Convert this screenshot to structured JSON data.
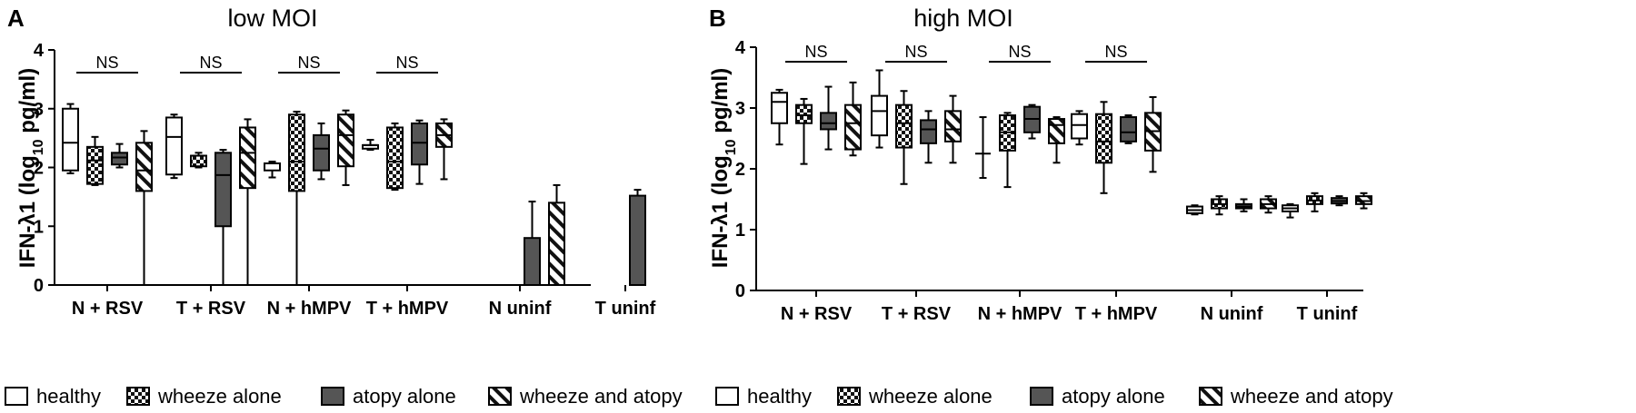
{
  "chart_data": [
    {
      "type": "box",
      "panel": "A",
      "title": "low MOI",
      "ylabel": "IFN-λ1 (log10 pg/ml)",
      "ylim": [
        0,
        4
      ],
      "yticks": [
        "0",
        "1",
        "2",
        "3",
        "4"
      ],
      "categories": [
        "N + RSV",
        "T + RSV",
        "N + hMPV",
        "T + hMPV",
        "N uninf",
        "T uninf"
      ],
      "annotations": [
        {
          "category": "N + RSV",
          "text": "NS"
        },
        {
          "category": "T + RSV",
          "text": "NS"
        },
        {
          "category": "N + hMPV",
          "text": "NS"
        },
        {
          "category": "T + hMPV",
          "text": "NS"
        }
      ],
      "series": [
        {
          "name": "healthy",
          "fill": "white",
          "values": [
            {
              "min": 1.9,
              "q1": 1.95,
              "median": 2.42,
              "q3": 3.0,
              "max": 3.08
            },
            {
              "min": 1.82,
              "q1": 1.88,
              "median": 2.52,
              "q3": 2.85,
              "max": 2.9
            },
            {
              "min": 1.83,
              "q1": 1.95,
              "median": 2.07,
              "q3": 2.07,
              "max": 2.1
            },
            {
              "min": 2.3,
              "q1": 2.32,
              "median": 2.38,
              "q3": 2.38,
              "max": 2.47
            },
            null,
            null
          ]
        },
        {
          "name": "wheeze alone",
          "fill": "checker",
          "values": [
            {
              "min": 1.7,
              "q1": 1.72,
              "median": 2.12,
              "q3": 2.35,
              "max": 2.52
            },
            {
              "min": 2.0,
              "q1": 2.02,
              "median": 2.2,
              "q3": 2.2,
              "max": 2.25
            },
            {
              "min": 0.0,
              "q1": 1.6,
              "median": 2.1,
              "q3": 2.9,
              "max": 2.95
            },
            {
              "min": 1.62,
              "q1": 1.65,
              "median": 2.1,
              "q3": 2.68,
              "max": 2.75
            },
            null,
            null
          ]
        },
        {
          "name": "atopy alone",
          "fill": "dark",
          "values": [
            {
              "min": 2.0,
              "q1": 2.05,
              "median": 2.17,
              "q3": 2.25,
              "max": 2.4
            },
            {
              "min": 0.0,
              "q1": 1.0,
              "median": 1.87,
              "q3": 2.25,
              "max": 2.3
            },
            {
              "min": 1.8,
              "q1": 1.95,
              "median": 2.32,
              "q3": 2.55,
              "max": 2.75
            },
            {
              "min": 1.72,
              "q1": 2.05,
              "median": 2.42,
              "q3": 2.75,
              "max": 2.8
            },
            {
              "min": 0.0,
              "q1": 0.0,
              "median": 0.0,
              "q3": 0.8,
              "max": 1.42
            },
            {
              "min": 0.0,
              "q1": 0.0,
              "median": 0.0,
              "q3": 1.52,
              "max": 1.62
            }
          ]
        },
        {
          "name": "wheeze and atopy",
          "fill": "hatch",
          "values": [
            {
              "min": 0.0,
              "q1": 1.6,
              "median": 1.95,
              "q3": 2.42,
              "max": 2.62
            },
            {
              "min": 0.0,
              "q1": 1.65,
              "median": 2.25,
              "q3": 2.68,
              "max": 2.82
            },
            {
              "min": 1.7,
              "q1": 2.02,
              "median": 2.55,
              "q3": 2.9,
              "max": 2.97
            },
            {
              "min": 1.8,
              "q1": 2.35,
              "median": 2.55,
              "q3": 2.75,
              "max": 2.82
            },
            {
              "min": 0.0,
              "q1": 0.0,
              "median": 0.0,
              "q3": 1.4,
              "max": 1.7
            },
            null
          ]
        }
      ]
    },
    {
      "type": "box",
      "panel": "B",
      "title": "high MOI",
      "ylabel": "IFN-λ1 (log10 pg/ml)",
      "ylim": [
        0,
        4
      ],
      "yticks": [
        "0",
        "1",
        "2",
        "3",
        "4"
      ],
      "categories": [
        "N + RSV",
        "T + RSV",
        "N + hMPV",
        "T + hMPV",
        "N uninf",
        "T uninf"
      ],
      "annotations": [
        {
          "category": "N + RSV",
          "text": "NS"
        },
        {
          "category": "T + RSV",
          "text": "NS"
        },
        {
          "category": "N + hMPV",
          "text": "NS"
        },
        {
          "category": "T + hMPV",
          "text": "NS"
        }
      ],
      "series": [
        {
          "name": "healthy",
          "fill": "white",
          "values": [
            {
              "min": 2.4,
              "q1": 2.75,
              "median": 3.1,
              "q3": 3.25,
              "max": 3.3
            },
            {
              "min": 2.35,
              "q1": 2.55,
              "median": 2.95,
              "q3": 3.2,
              "max": 3.62
            },
            {
              "min": 1.85,
              "q1": 2.25,
              "median": 2.25,
              "q3": 2.25,
              "max": 2.85
            },
            {
              "min": 2.4,
              "q1": 2.5,
              "median": 2.72,
              "q3": 2.9,
              "max": 2.95
            },
            {
              "min": 1.25,
              "q1": 1.27,
              "median": 1.32,
              "q3": 1.38,
              "max": 1.4
            },
            {
              "min": 1.2,
              "q1": 1.3,
              "median": 1.35,
              "q3": 1.4,
              "max": 1.42
            }
          ]
        },
        {
          "name": "wheeze alone",
          "fill": "checker",
          "values": [
            {
              "min": 2.08,
              "q1": 2.75,
              "median": 2.88,
              "q3": 3.05,
              "max": 3.15
            },
            {
              "min": 1.75,
              "q1": 2.35,
              "median": 2.75,
              "q3": 3.05,
              "max": 3.28
            },
            {
              "min": 1.7,
              "q1": 2.3,
              "median": 2.6,
              "q3": 2.88,
              "max": 2.92
            },
            {
              "min": 1.6,
              "q1": 2.1,
              "median": 2.45,
              "q3": 2.9,
              "max": 3.1
            },
            {
              "min": 1.25,
              "q1": 1.35,
              "median": 1.42,
              "q3": 1.5,
              "max": 1.55
            },
            {
              "min": 1.3,
              "q1": 1.42,
              "median": 1.48,
              "q3": 1.55,
              "max": 1.6
            }
          ]
        },
        {
          "name": "atopy alone",
          "fill": "dark",
          "values": [
            {
              "min": 2.32,
              "q1": 2.65,
              "median": 2.75,
              "q3": 2.92,
              "max": 3.35
            },
            {
              "min": 2.1,
              "q1": 2.42,
              "median": 2.65,
              "q3": 2.8,
              "max": 2.95
            },
            {
              "min": 2.5,
              "q1": 2.6,
              "median": 2.82,
              "q3": 3.02,
              "max": 3.05
            },
            {
              "min": 2.42,
              "q1": 2.45,
              "median": 2.6,
              "q3": 2.85,
              "max": 2.88
            },
            {
              "min": 1.3,
              "q1": 1.35,
              "median": 1.38,
              "q3": 1.42,
              "max": 1.5
            },
            {
              "min": 1.4,
              "q1": 1.43,
              "median": 1.47,
              "q3": 1.52,
              "max": 1.55
            }
          ]
        },
        {
          "name": "wheeze and atopy",
          "fill": "hatch",
          "values": [
            {
              "min": 2.22,
              "q1": 2.32,
              "median": 2.75,
              "q3": 3.05,
              "max": 3.42
            },
            {
              "min": 2.1,
              "q1": 2.45,
              "median": 2.65,
              "q3": 2.95,
              "max": 3.2
            },
            {
              "min": 2.1,
              "q1": 2.42,
              "median": 2.72,
              "q3": 2.82,
              "max": 2.85
            },
            {
              "min": 1.95,
              "q1": 2.3,
              "median": 2.62,
              "q3": 2.92,
              "max": 3.18
            },
            {
              "min": 1.28,
              "q1": 1.35,
              "median": 1.42,
              "q3": 1.5,
              "max": 1.55
            },
            {
              "min": 1.35,
              "q1": 1.42,
              "median": 1.47,
              "q3": 1.55,
              "max": 1.6
            }
          ]
        }
      ]
    }
  ],
  "legend": {
    "items": [
      {
        "label": "healthy",
        "fill": "white"
      },
      {
        "label": "wheeze alone",
        "fill": "checker"
      },
      {
        "label": "atopy alone",
        "fill": "dark"
      },
      {
        "label": "wheeze and atopy",
        "fill": "hatch"
      }
    ]
  }
}
